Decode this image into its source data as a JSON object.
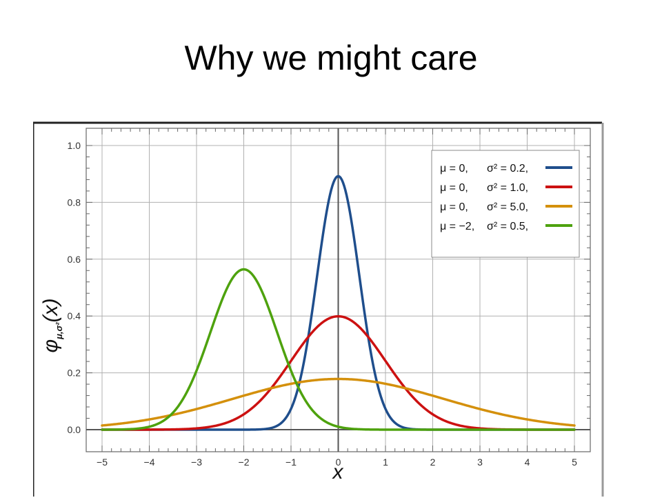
{
  "slide": {
    "title": "Why we might care"
  },
  "chart_data": {
    "type": "line",
    "title": "",
    "xlabel": "x",
    "ylabel_symbol": "φ",
    "ylabel_subscript": "μ,σ²",
    "ylabel_arg": "(x)",
    "xlim": [
      -5,
      5
    ],
    "ylim": [
      0,
      1.0
    ],
    "x_ticks": [
      -5,
      -4,
      -3,
      -2,
      -1,
      0,
      1,
      2,
      3,
      4,
      5
    ],
    "x_tick_labels": [
      "−5",
      "−4",
      "−3",
      "−2",
      "−1",
      "0",
      "1",
      "2",
      "3",
      "4",
      "5"
    ],
    "y_ticks": [
      0,
      0.2,
      0.4,
      0.6,
      0.8,
      1.0
    ],
    "y_tick_labels": [
      "0.0",
      "0.2",
      "0.4",
      "0.6",
      "0.8",
      "1.0"
    ],
    "grid": true,
    "legend_position": "top-right",
    "series": [
      {
        "mu_text": "μ = 0,",
        "var_text": "σ² = 0.2,",
        "mu": 0,
        "variance": 0.2,
        "color": "#1f4e8c"
      },
      {
        "mu_text": "μ = 0,",
        "var_text": "σ² = 1.0,",
        "mu": 0,
        "variance": 1.0,
        "color": "#cc1111"
      },
      {
        "mu_text": "μ = 0,",
        "var_text": "σ² = 5.0,",
        "mu": 0,
        "variance": 5.0,
        "color": "#d4900c"
      },
      {
        "mu_text": "μ = −2,",
        "var_text": "σ² = 0.5,",
        "mu": -2,
        "variance": 0.5,
        "color": "#4ea20e"
      }
    ]
  }
}
